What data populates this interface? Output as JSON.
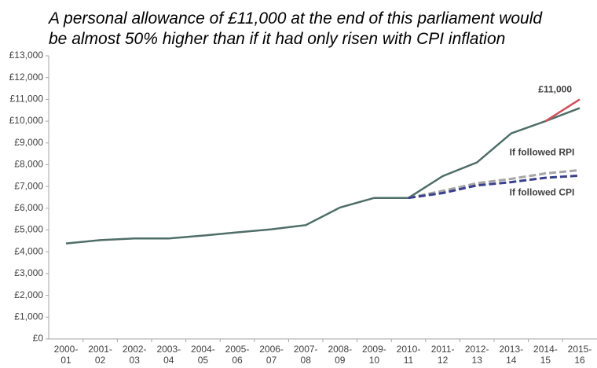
{
  "chart_data": {
    "type": "line",
    "title": [
      "A personal allowance of £11,000 at the end of this parliament would",
      "be almost 50% higher than if it had only risen with CPI inflation"
    ],
    "categories": [
      "2000-01",
      "2001-02",
      "2002-03",
      "2003-04",
      "2004-05",
      "2005-06",
      "2006-07",
      "2007-08",
      "2008-09",
      "2009-10",
      "2010-11",
      "2011-12",
      "2012-13",
      "2013-14",
      "2014-15",
      "2015-16"
    ],
    "series": [
      {
        "color": "#4f6e68",
        "dash": false,
        "values": [
          4385,
          4535,
          4615,
          4615,
          4745,
          4895,
          5035,
          5225,
          6035,
          6475,
          6475,
          7475,
          8105,
          9440,
          10000,
          10600
        ]
      },
      {
        "color": "#d0505c",
        "dash": false,
        "values": [
          null,
          null,
          null,
          null,
          null,
          null,
          null,
          null,
          null,
          null,
          null,
          null,
          null,
          null,
          10000,
          11000
        ],
        "value_labels": [
          null,
          null,
          null,
          null,
          null,
          null,
          null,
          null,
          null,
          null,
          null,
          null,
          null,
          null,
          null,
          "£11,000"
        ]
      },
      {
        "name": "If followed RPI",
        "color": "#a6a6a6",
        "dash": true,
        "values": [
          null,
          null,
          null,
          null,
          null,
          null,
          null,
          null,
          null,
          null,
          6475,
          6800,
          7150,
          7350,
          7600,
          7750
        ]
      },
      {
        "name": "If followed CPI",
        "color": "#3a3f8c",
        "dash": true,
        "values": [
          null,
          null,
          null,
          null,
          null,
          null,
          null,
          null,
          null,
          null,
          6475,
          6700,
          7050,
          7200,
          7400,
          7500
        ]
      }
    ],
    "ylim": [
      0,
      13000
    ],
    "yticks": [
      {
        "value": 0,
        "label": "£0"
      },
      {
        "value": 1000,
        "label": "£1,000"
      },
      {
        "value": 2000,
        "label": "£2,000"
      },
      {
        "value": 3000,
        "label": "£3,000"
      },
      {
        "value": 4000,
        "label": "£4,000"
      },
      {
        "value": 5000,
        "label": "£5,000"
      },
      {
        "value": 6000,
        "label": "£6,000"
      },
      {
        "value": 7000,
        "label": "£7,000"
      },
      {
        "value": 8000,
        "label": "£8,000"
      },
      {
        "value": 9000,
        "label": "£9,000"
      },
      {
        "value": 10000,
        "label": "£10,000"
      },
      {
        "value": 11000,
        "label": "£11,000"
      },
      {
        "value": 12000,
        "label": "£12,000"
      },
      {
        "value": 13000,
        "label": "£13,000"
      }
    ],
    "grid": false
  }
}
